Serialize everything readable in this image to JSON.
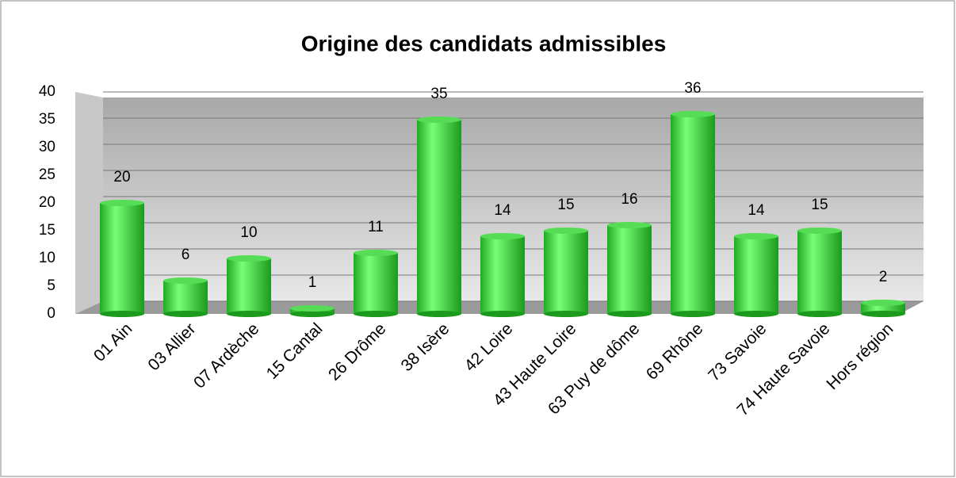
{
  "chart_data": {
    "type": "bar",
    "title": "Origine des candidats admissibles",
    "categories": [
      "01 Ain",
      "03 Allier",
      "07 Ardèche",
      "15 Cantal",
      "26 Drôme",
      "38 Isère",
      "42 Loire",
      "43 Haute Loire",
      "63 Puy de dôme",
      "69 Rhône",
      "73 Savoie",
      "74 Haute Savoie",
      "Hors région"
    ],
    "values": [
      20,
      6,
      10,
      1,
      11,
      35,
      14,
      15,
      16,
      36,
      14,
      15,
      2
    ],
    "color": "#44ee44",
    "ylim": [
      0,
      40
    ],
    "yticks": [
      0,
      5,
      10,
      15,
      20,
      25,
      30,
      35,
      40
    ],
    "grid": true
  }
}
